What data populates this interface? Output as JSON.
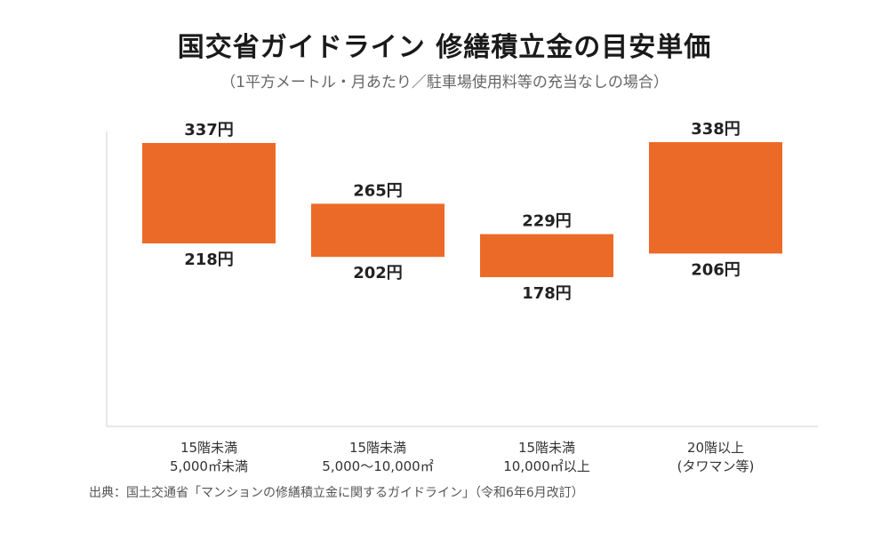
{
  "chart_data": {
    "type": "bar",
    "title": "国交省ガイドライン 修繕積立金の目安単価",
    "subtitle": "（1平方メートル・月あたり／駐車場使用料等の充当なしの場合）",
    "categories": [
      {
        "line1": "15階未満",
        "line2": "5,000㎡未満"
      },
      {
        "line1": "15階未満",
        "line2": "5,000〜10,000㎡"
      },
      {
        "line1": "15階未満",
        "line2": "10,000㎡以上"
      },
      {
        "line1": "20階以上",
        "line2": "(タワマン等)"
      }
    ],
    "series": [
      {
        "low": 218,
        "high": 337
      },
      {
        "low": 202,
        "high": 265
      },
      {
        "low": 178,
        "high": 229
      },
      {
        "low": 206,
        "high": 338
      }
    ],
    "high_labels": [
      "337円",
      "265円",
      "229円",
      "338円"
    ],
    "low_labels": [
      "218円",
      "202円",
      "178円",
      "206円"
    ],
    "bar_color": "#EC6A27",
    "grid": false,
    "legend": "none"
  },
  "source": "出典：国土交通省「マンションの修繕積立金に関するガイドライン」（令和6年6月改訂）"
}
